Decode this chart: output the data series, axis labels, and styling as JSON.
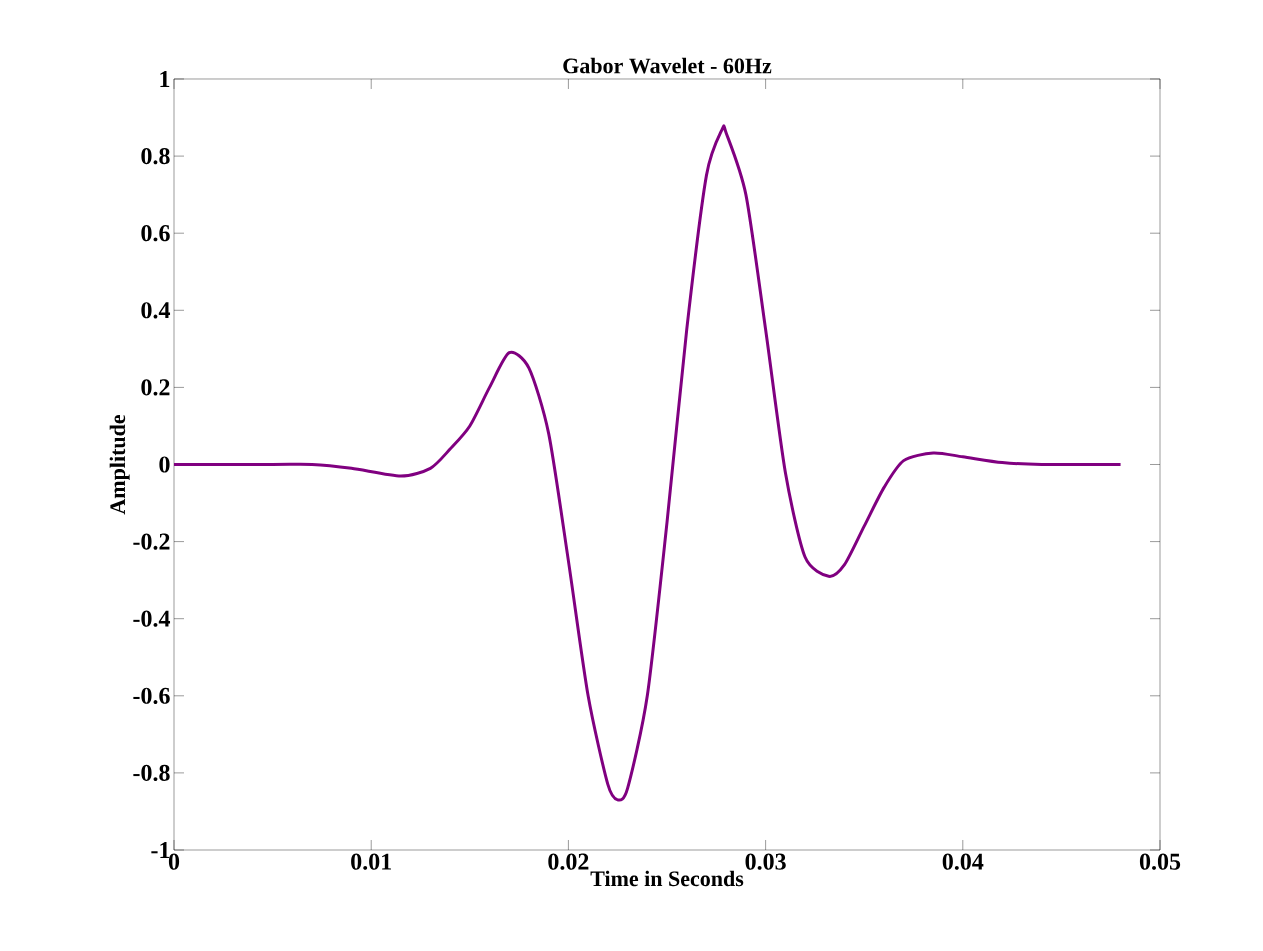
{
  "chart_data": {
    "type": "line",
    "title": "Gabor Wavelet - 60Hz",
    "xlabel": "Time in Seconds",
    "ylabel": "Amplitude",
    "x": [
      0,
      0.005,
      0.007,
      0.009,
      0.0115,
      0.013,
      0.014,
      0.015,
      0.016,
      0.017,
      0.018,
      0.019,
      0.02,
      0.021,
      0.022,
      0.0225,
      0.023,
      0.024,
      0.025,
      0.026,
      0.027,
      0.0278,
      0.028,
      0.029,
      0.03,
      0.031,
      0.032,
      0.0332,
      0.034,
      0.035,
      0.036,
      0.037,
      0.0385,
      0.04,
      0.042,
      0.044,
      0.048
    ],
    "values": [
      0,
      0,
      0,
      -0.01,
      -0.03,
      -0.01,
      0.04,
      0.1,
      0.2,
      0.29,
      0.25,
      0.08,
      -0.25,
      -0.6,
      -0.83,
      -0.87,
      -0.84,
      -0.6,
      -0.15,
      0.35,
      0.75,
      0.87,
      0.86,
      0.7,
      0.35,
      -0.02,
      -0.24,
      -0.29,
      -0.26,
      -0.16,
      -0.06,
      0.01,
      0.03,
      0.02,
      0.005,
      0,
      0
    ],
    "color": "#800080",
    "xlim": [
      0,
      0.05
    ],
    "ylim": [
      -1,
      1
    ],
    "xticks": [
      0,
      0.01,
      0.02,
      0.03,
      0.04,
      0.05
    ],
    "yticks": [
      -1,
      -0.8,
      -0.6,
      -0.4,
      -0.2,
      0,
      0.2,
      0.4,
      0.6,
      0.8,
      1
    ]
  }
}
